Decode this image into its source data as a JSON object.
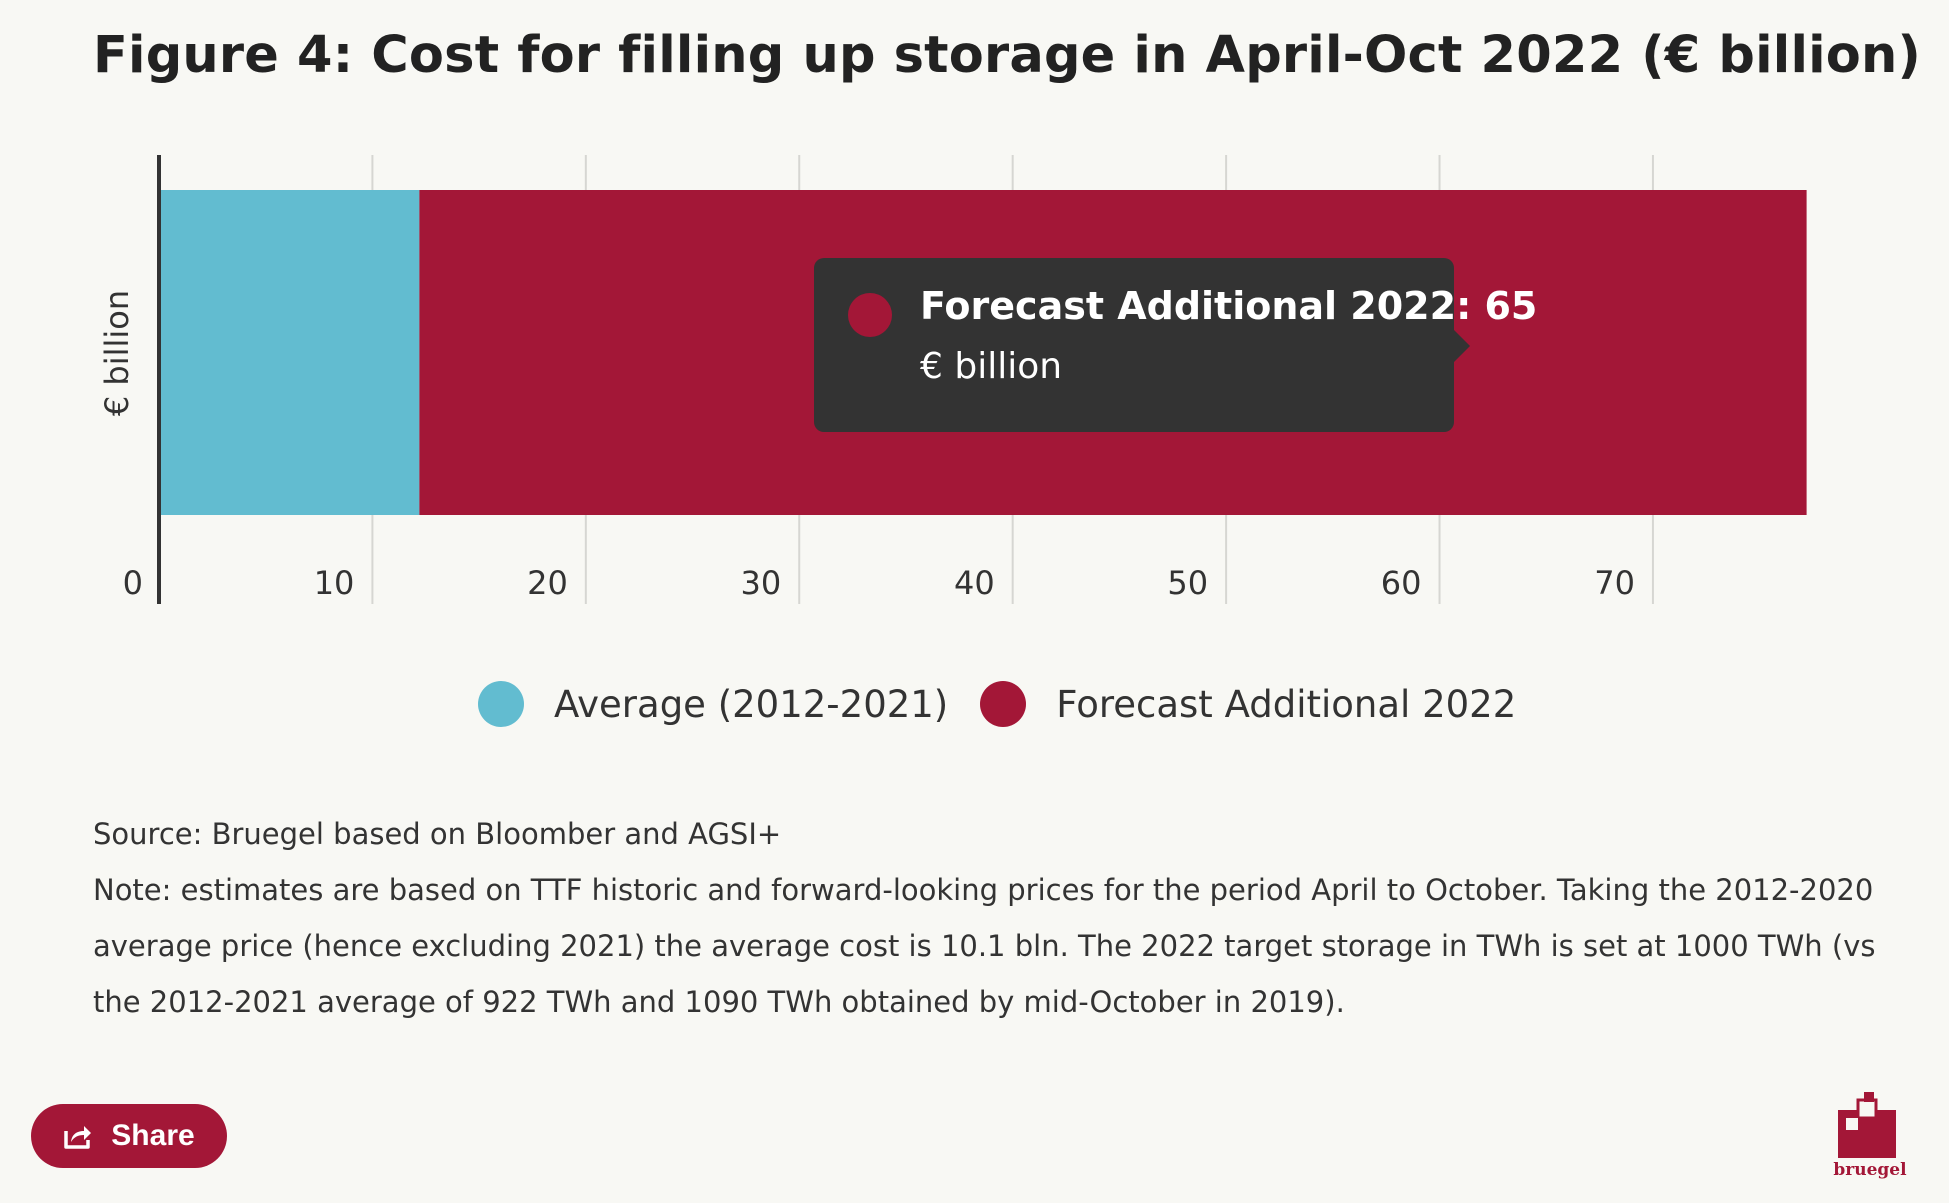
{
  "title": "Figure 4: Cost for filling up storage in April-Oct 2022 (€ billion)",
  "chart_data": {
    "type": "bar",
    "orientation": "horizontal",
    "stacked": true,
    "ylabel": "€ billion",
    "xlim": [
      0,
      77.5
    ],
    "x_ticks": [
      "0",
      "10",
      "20",
      "30",
      "40",
      "50",
      "60",
      "70"
    ],
    "x_tick_values": [
      0,
      10,
      20,
      30,
      40,
      50,
      60,
      70
    ],
    "grid": true,
    "legend_position": "bottom",
    "series": [
      {
        "name": "Average (2012-2021)",
        "values": [
          12.2
        ],
        "color": "#62bcd0"
      },
      {
        "name": "Forecast Additional 2022",
        "values": [
          65
        ],
        "color": "#a31737"
      }
    ]
  },
  "tooltip": {
    "title": "Forecast Additional 2022: 65",
    "unit": "€ billion",
    "color": "#a31737"
  },
  "source": "Source: Bruegel based on Bloomber and AGSI+",
  "note": "Note: estimates are based on TTF historic and forward-looking prices for the period April to October. Taking the 2012-2020 average price (hence excluding 2021) the average cost is 10.1 bln. The 2022 target storage in TWh is set at 1000 TWh (vs the 2012-2021 average of 922 TWh and 1090 TWh obtained by mid-October in 2019).",
  "share_label": "Share",
  "logo_text": "bruegel",
  "brand_color": "#a31737"
}
